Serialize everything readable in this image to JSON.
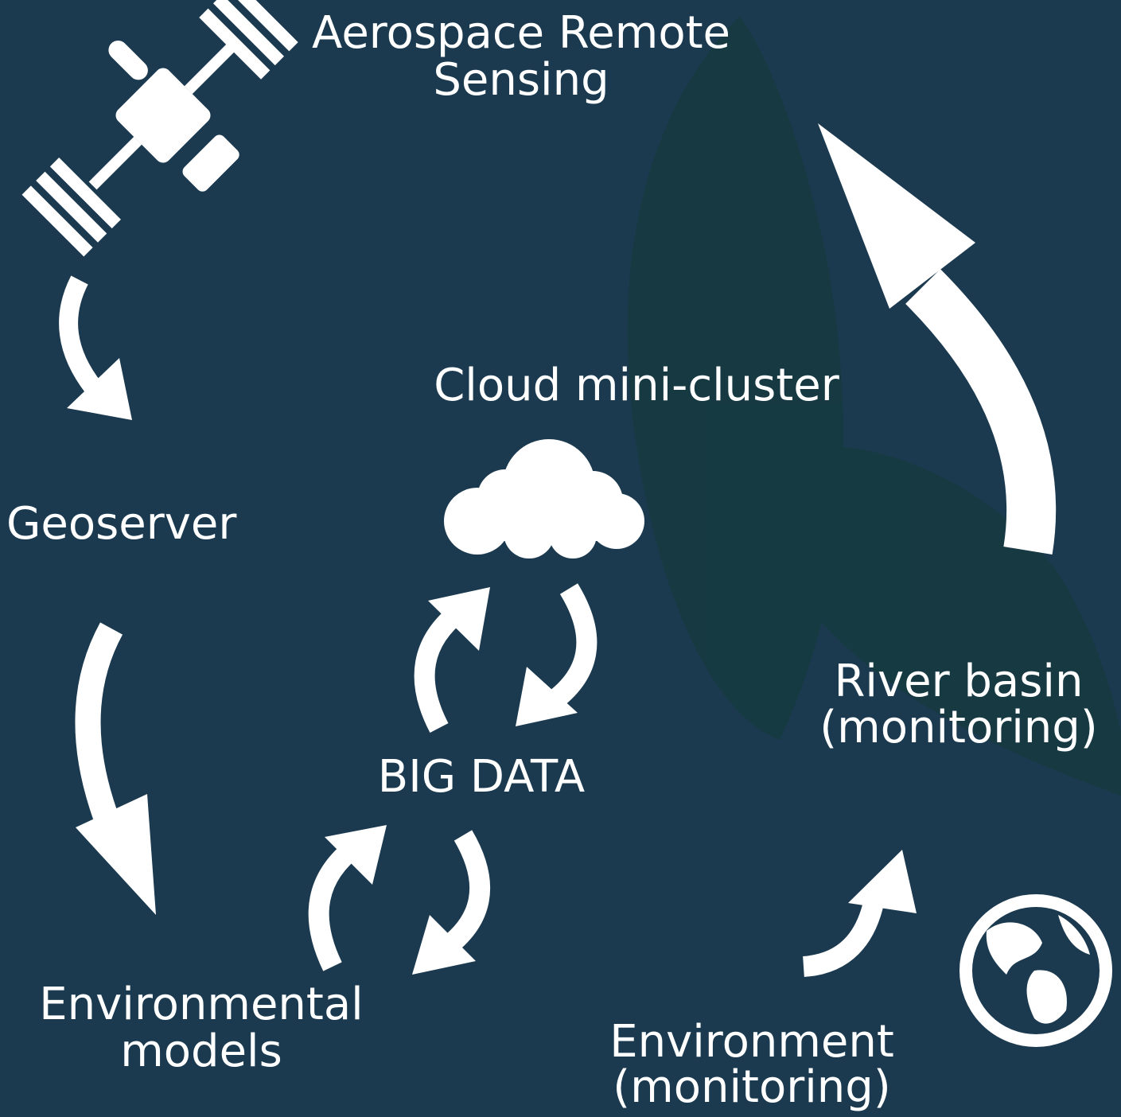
{
  "nodes": [
    {
      "label": [
        "Aerospace Remote",
        "Sensing"
      ]
    },
    {
      "label": [
        "Cloud mini-cluster"
      ]
    },
    {
      "label": [
        "Geoserver"
      ]
    },
    {
      "label": [
        "BIG DATA"
      ]
    },
    {
      "label": [
        "River basin",
        "(monitoring)"
      ]
    },
    {
      "label": [
        "Environmental",
        "models"
      ]
    },
    {
      "label": [
        "Environment",
        "(monitoring)"
      ]
    }
  ]
}
